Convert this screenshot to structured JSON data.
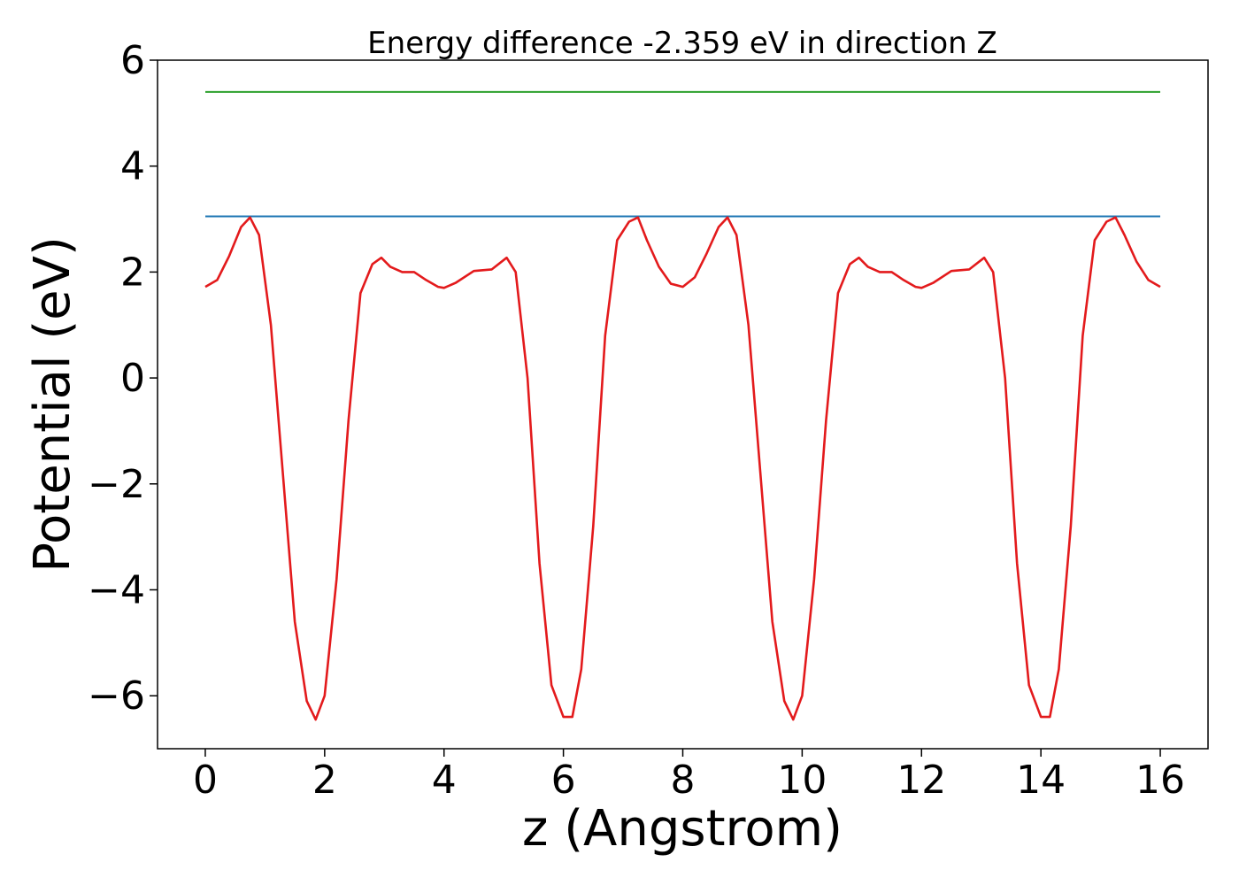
{
  "chart_data": {
    "type": "line",
    "title": "Energy difference -2.359 eV in direction Z",
    "xlabel": "z (Angstrom)",
    "ylabel": "Potential (eV)",
    "xlim": [
      -0.8,
      16.8
    ],
    "ylim": [
      -7,
      6
    ],
    "xticks": [
      0,
      2,
      4,
      6,
      8,
      10,
      12,
      14,
      16
    ],
    "yticks": [
      -6,
      -4,
      -2,
      0,
      2,
      4,
      6
    ],
    "xtick_labels": [
      "0",
      "2",
      "4",
      "6",
      "8",
      "10",
      "12",
      "14",
      "16"
    ],
    "ytick_labels": [
      "−6",
      "−4",
      "−2",
      "0",
      "2",
      "4",
      "6"
    ],
    "grid": false,
    "series": [
      {
        "color": "#2ca02c",
        "x": [
          0,
          16
        ],
        "y": [
          5.4,
          5.4
        ]
      },
      {
        "color": "#1f77b4",
        "x": [
          0,
          16
        ],
        "y": [
          3.05,
          3.05
        ]
      },
      {
        "color": "#e31a1c",
        "x": [
          0,
          0.2,
          0.4,
          0.6,
          0.75,
          0.9,
          1.1,
          1.3,
          1.5,
          1.7,
          1.85,
          2.0,
          2.2,
          2.4,
          2.6,
          2.8,
          2.95,
          3.1,
          3.3,
          3.5,
          3.7,
          3.9,
          4.0,
          4.2,
          4.5,
          4.8,
          5.05,
          5.2,
          5.4,
          5.6,
          5.8,
          6.0,
          6.15,
          6.3,
          6.5,
          6.7,
          6.9,
          7.1,
          7.25,
          7.4,
          7.6,
          7.8,
          8.0,
          8.2,
          8.4,
          8.6,
          8.75,
          8.9,
          9.1,
          9.3,
          9.5,
          9.7,
          9.85,
          10.0,
          10.2,
          10.4,
          10.6,
          10.8,
          10.95,
          11.1,
          11.3,
          11.5,
          11.7,
          11.9,
          12.0,
          12.2,
          12.5,
          12.8,
          13.05,
          13.2,
          13.4,
          13.6,
          13.8,
          14.0,
          14.15,
          14.3,
          14.5,
          14.7,
          14.9,
          15.1,
          15.25,
          15.4,
          15.6,
          15.8,
          16.0
        ],
        "y": [
          1.72,
          1.85,
          2.3,
          2.85,
          3.03,
          2.7,
          1.0,
          -1.8,
          -4.6,
          -6.1,
          -6.45,
          -6.0,
          -3.8,
          -0.8,
          1.6,
          2.15,
          2.27,
          2.1,
          2.0,
          2.0,
          1.85,
          1.72,
          1.7,
          1.8,
          2.02,
          2.05,
          2.27,
          2.0,
          0.0,
          -3.5,
          -5.8,
          -6.4,
          -6.4,
          -5.5,
          -2.8,
          0.8,
          2.6,
          2.95,
          3.03,
          2.6,
          2.1,
          1.78,
          1.72,
          1.9,
          2.35,
          2.85,
          3.03,
          2.7,
          1.0,
          -1.8,
          -4.6,
          -6.1,
          -6.45,
          -6.0,
          -3.8,
          -0.8,
          1.6,
          2.15,
          2.27,
          2.1,
          2.0,
          2.0,
          1.85,
          1.72,
          1.7,
          1.8,
          2.02,
          2.05,
          2.27,
          2.0,
          0.0,
          -3.5,
          -5.8,
          -6.4,
          -6.4,
          -5.5,
          -2.8,
          0.8,
          2.6,
          2.95,
          3.03,
          2.7,
          2.2,
          1.85,
          1.72
        ]
      }
    ]
  }
}
